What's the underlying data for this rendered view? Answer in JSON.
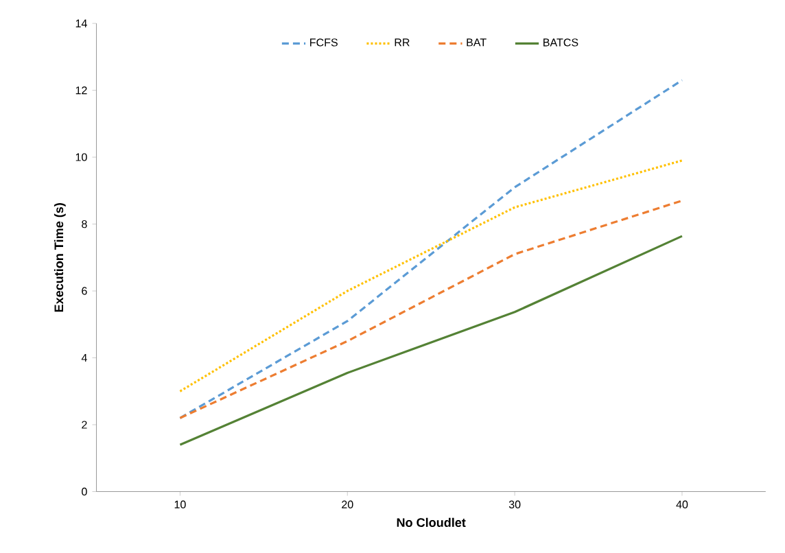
{
  "chart_data": {
    "type": "line",
    "xlabel": "No Cloudlet",
    "ylabel": "Execution Time (s)",
    "categories": [
      "10",
      "20",
      "30",
      "40"
    ],
    "ylim": [
      0,
      14
    ],
    "yticks": [
      0,
      2,
      4,
      6,
      8,
      10,
      12,
      14
    ],
    "legend": "top",
    "grid": false,
    "series": [
      {
        "name": "FCFS",
        "color": "#5b9bd5",
        "line_style": "dashed",
        "values": [
          2.2,
          5.1,
          9.1,
          12.3
        ]
      },
      {
        "name": "RR",
        "color": "#ffc000",
        "line_style": "dotted",
        "values": [
          3.0,
          6.0,
          8.5,
          9.9
        ]
      },
      {
        "name": "BAT",
        "color": "#ed7d31",
        "line_style": "dashed",
        "values": [
          2.2,
          4.5,
          7.1,
          8.7
        ]
      },
      {
        "name": "BATCS",
        "color": "#548235",
        "line_style": "solid",
        "values": [
          1.4,
          3.55,
          5.37,
          7.64
        ]
      }
    ]
  }
}
